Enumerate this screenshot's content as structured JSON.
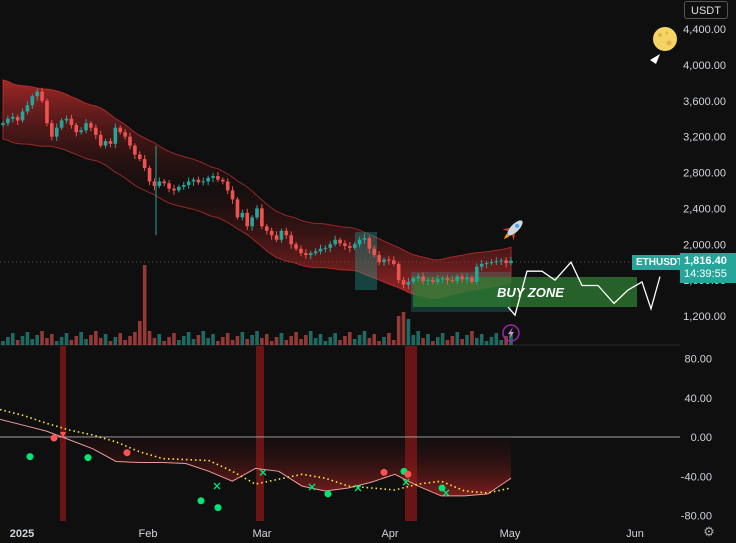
{
  "currency": "USDT",
  "symbol": "ETHUSDT",
  "last_price": "1,816.40",
  "countdown": "14:39:55",
  "buy_zone_label": "BUY ZONE",
  "colors": {
    "up": "#26a69a",
    "down": "#ef5350",
    "background": "#0f0f0f",
    "band": "#b71c1c",
    "buy_zone": "#2e7d32"
  },
  "icons": [
    "rocket-icon",
    "moon-icon",
    "lightning-icon",
    "settings-icon"
  ],
  "chart_data": [
    {
      "type": "candlestick",
      "title": "",
      "xlabel": "",
      "ylabel": "",
      "x_ticks": [
        "2025",
        "Feb",
        "Mar",
        "Apr",
        "May",
        "Jun"
      ],
      "y_ticks": [
        "4,400.00",
        "4,000.00",
        "3,600.00",
        "3,200.00",
        "2,800.00",
        "2,400.00",
        "2,000.00",
        "1,600.00",
        "1,200.00"
      ],
      "ylim": [
        1000,
        4500
      ],
      "series": [
        {
          "name": "",
          "values": [
            3350,
            3400,
            3420,
            3380,
            3480,
            3550,
            3650,
            3700,
            3600,
            3350,
            3200,
            3300,
            3380,
            3400,
            3330,
            3250,
            3270,
            3350,
            3300,
            3220,
            3100,
            3150,
            3120,
            3300,
            3250,
            3200,
            3100,
            3000,
            2950,
            2850,
            2700,
            2650,
            2700,
            2680,
            2620,
            2600,
            2640,
            2660,
            2700,
            2720,
            2690,
            2700,
            2740,
            2760,
            2720,
            2700,
            2600,
            2500,
            2300,
            2350,
            2200,
            2300,
            2400,
            2200,
            2150,
            2100,
            2050,
            2150,
            2100,
            2000,
            1950,
            1900,
            1880,
            1900,
            1920,
            1950,
            1960,
            2000,
            2050,
            2010,
            1980,
            1960,
            2000,
            2050,
            2070,
            1950,
            1880,
            1800,
            1830,
            1820,
            1780,
            1600,
            1550,
            1580,
            1620,
            1640,
            1590,
            1600,
            1580,
            1610,
            1620,
            1600,
            1590,
            1640,
            1610,
            1630,
            1580,
            1750,
            1780,
            1790,
            1800,
            1810,
            1820,
            1790,
            1816
          ]
        },
        {
          "name": "",
          "values": [
            1300,
            1210,
            1700,
            1700,
            1600,
            1800,
            1540,
            1540,
            1340,
            1490,
            1580,
            1280,
            1640
          ]
        }
      ],
      "annotations": [
        "BUY ZONE"
      ]
    },
    {
      "type": "line",
      "title": "",
      "xlabel": "",
      "ylabel": "",
      "y_ticks": [
        "80.00",
        "40.00",
        "0.00",
        "-40.00",
        "-80.00"
      ],
      "ylim": [
        -85,
        95
      ],
      "grid": false,
      "series": [
        {
          "name": "",
          "values": [
            18,
            12,
            6,
            -3,
            -12,
            -25,
            -26,
            -26,
            -27,
            -35,
            -45,
            -32,
            -35,
            -50,
            -55,
            -52,
            -46,
            -38,
            -50,
            -60,
            -60,
            -58,
            -42
          ]
        },
        {
          "name": "",
          "values": [
            28,
            22,
            14,
            7,
            2,
            -5,
            -15,
            -22,
            -23,
            -24,
            -35,
            -48,
            -43,
            -38,
            -42,
            -50,
            -52,
            -54,
            -48,
            -45,
            -55,
            -57,
            -52
          ]
        }
      ],
      "buy_signals": [
        -20,
        -21,
        -65,
        -72,
        -58,
        -35,
        -52
      ],
      "sell_signals": [
        -1,
        -16,
        -36,
        -38
      ]
    }
  ]
}
